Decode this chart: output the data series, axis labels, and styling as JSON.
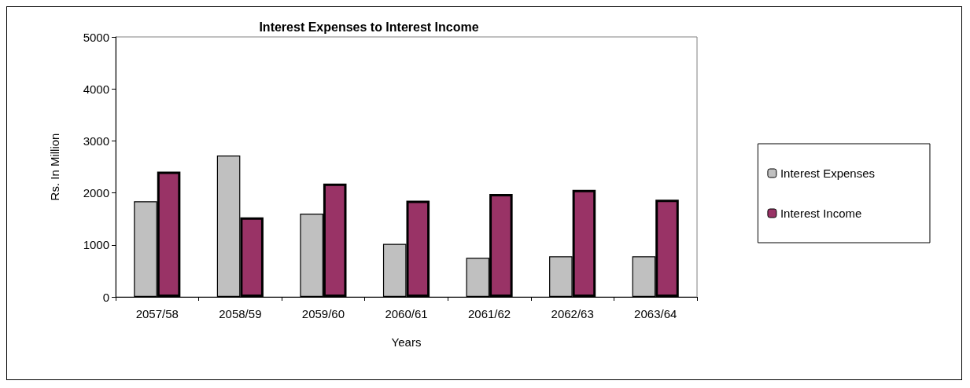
{
  "chart_data": {
    "type": "bar",
    "title": "Interest Expenses to Interest Income",
    "xlabel": "Years",
    "ylabel": "Rs. In Million",
    "categories": [
      "2057/58",
      "2058/59",
      "2059/60",
      "2060/61",
      "2061/62",
      "2062/63",
      "2063/64"
    ],
    "series": [
      {
        "name": "Interest Expenses",
        "color": "#c0c0c0",
        "values": [
          1840,
          2720,
          1600,
          1020,
          750,
          780,
          780
        ]
      },
      {
        "name": "Interest Income",
        "color": "#993366",
        "values": [
          2410,
          1530,
          2180,
          1850,
          1980,
          2060,
          1870
        ]
      }
    ],
    "ylim": [
      0,
      5000
    ],
    "yticks": [
      0,
      1000,
      2000,
      3000,
      4000,
      5000
    ],
    "grid": false,
    "legend": "right"
  }
}
